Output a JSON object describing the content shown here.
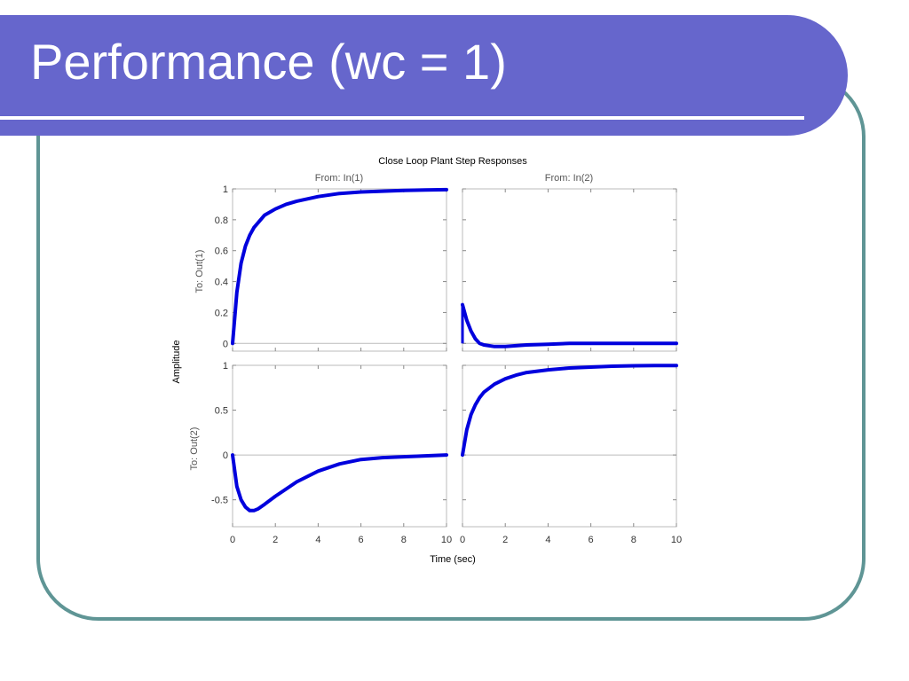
{
  "slide": {
    "title": "Performance (wc = 1)"
  },
  "chart_data": {
    "type": "line",
    "title": "Close Loop Plant Step Responses",
    "xlabel": "Time (sec)",
    "ylabel": "Amplitude",
    "columns": [
      "From: In(1)",
      "From: In(2)"
    ],
    "rows": [
      "To: Out(1)",
      "To: Out(2)"
    ],
    "xlim": [
      0,
      10
    ],
    "xticks": [
      0,
      2,
      4,
      6,
      8,
      10
    ],
    "xtick_labels": [
      "0",
      "2",
      "4",
      "6",
      "8",
      "10"
    ],
    "row_ylims": [
      [
        -0.05,
        1.0
      ],
      [
        -0.8,
        1.0
      ]
    ],
    "row_yticks": [
      [
        0,
        0.2,
        0.4,
        0.6,
        0.8,
        1
      ],
      [
        -0.5,
        0,
        0.5,
        1
      ]
    ],
    "row_ytick_labels": [
      [
        "0",
        "0.2",
        "0.4",
        "0.6",
        "0.8",
        "1"
      ],
      [
        "-0.5",
        "0",
        "0.5",
        "1"
      ]
    ],
    "line_color": "#0000dd",
    "grid": false,
    "series": [
      {
        "row": 0,
        "col": 0,
        "x": [
          0,
          0.2,
          0.4,
          0.6,
          0.8,
          1,
          1.5,
          2,
          2.5,
          3,
          4,
          5,
          6,
          7,
          8,
          9,
          10
        ],
        "y": [
          0,
          0.33,
          0.52,
          0.63,
          0.7,
          0.75,
          0.83,
          0.87,
          0.9,
          0.92,
          0.95,
          0.97,
          0.98,
          0.985,
          0.99,
          0.993,
          0.995
        ]
      },
      {
        "row": 0,
        "col": 1,
        "x": [
          0,
          0.1,
          0.2,
          0.4,
          0.6,
          0.8,
          1,
          1.5,
          2,
          3,
          4,
          5,
          6,
          8,
          10
        ],
        "y": [
          0.25,
          0.2,
          0.15,
          0.08,
          0.03,
          0.0,
          -0.01,
          -0.02,
          -0.02,
          -0.01,
          -0.005,
          0,
          0,
          0,
          0
        ]
      },
      {
        "row": 1,
        "col": 0,
        "x": [
          0,
          0.2,
          0.4,
          0.6,
          0.8,
          1,
          1.2,
          1.5,
          2,
          2.5,
          3,
          4,
          5,
          6,
          7,
          8,
          9,
          10
        ],
        "y": [
          0,
          -0.35,
          -0.5,
          -0.58,
          -0.62,
          -0.62,
          -0.6,
          -0.55,
          -0.46,
          -0.38,
          -0.3,
          -0.18,
          -0.1,
          -0.05,
          -0.03,
          -0.02,
          -0.01,
          0
        ]
      },
      {
        "row": 1,
        "col": 1,
        "x": [
          0,
          0.2,
          0.4,
          0.6,
          0.8,
          1,
          1.5,
          2,
          2.5,
          3,
          4,
          5,
          6,
          7,
          8,
          9,
          10
        ],
        "y": [
          0,
          0.28,
          0.45,
          0.56,
          0.64,
          0.7,
          0.79,
          0.85,
          0.89,
          0.92,
          0.95,
          0.97,
          0.98,
          0.99,
          0.995,
          0.997,
          0.998
        ]
      }
    ]
  }
}
